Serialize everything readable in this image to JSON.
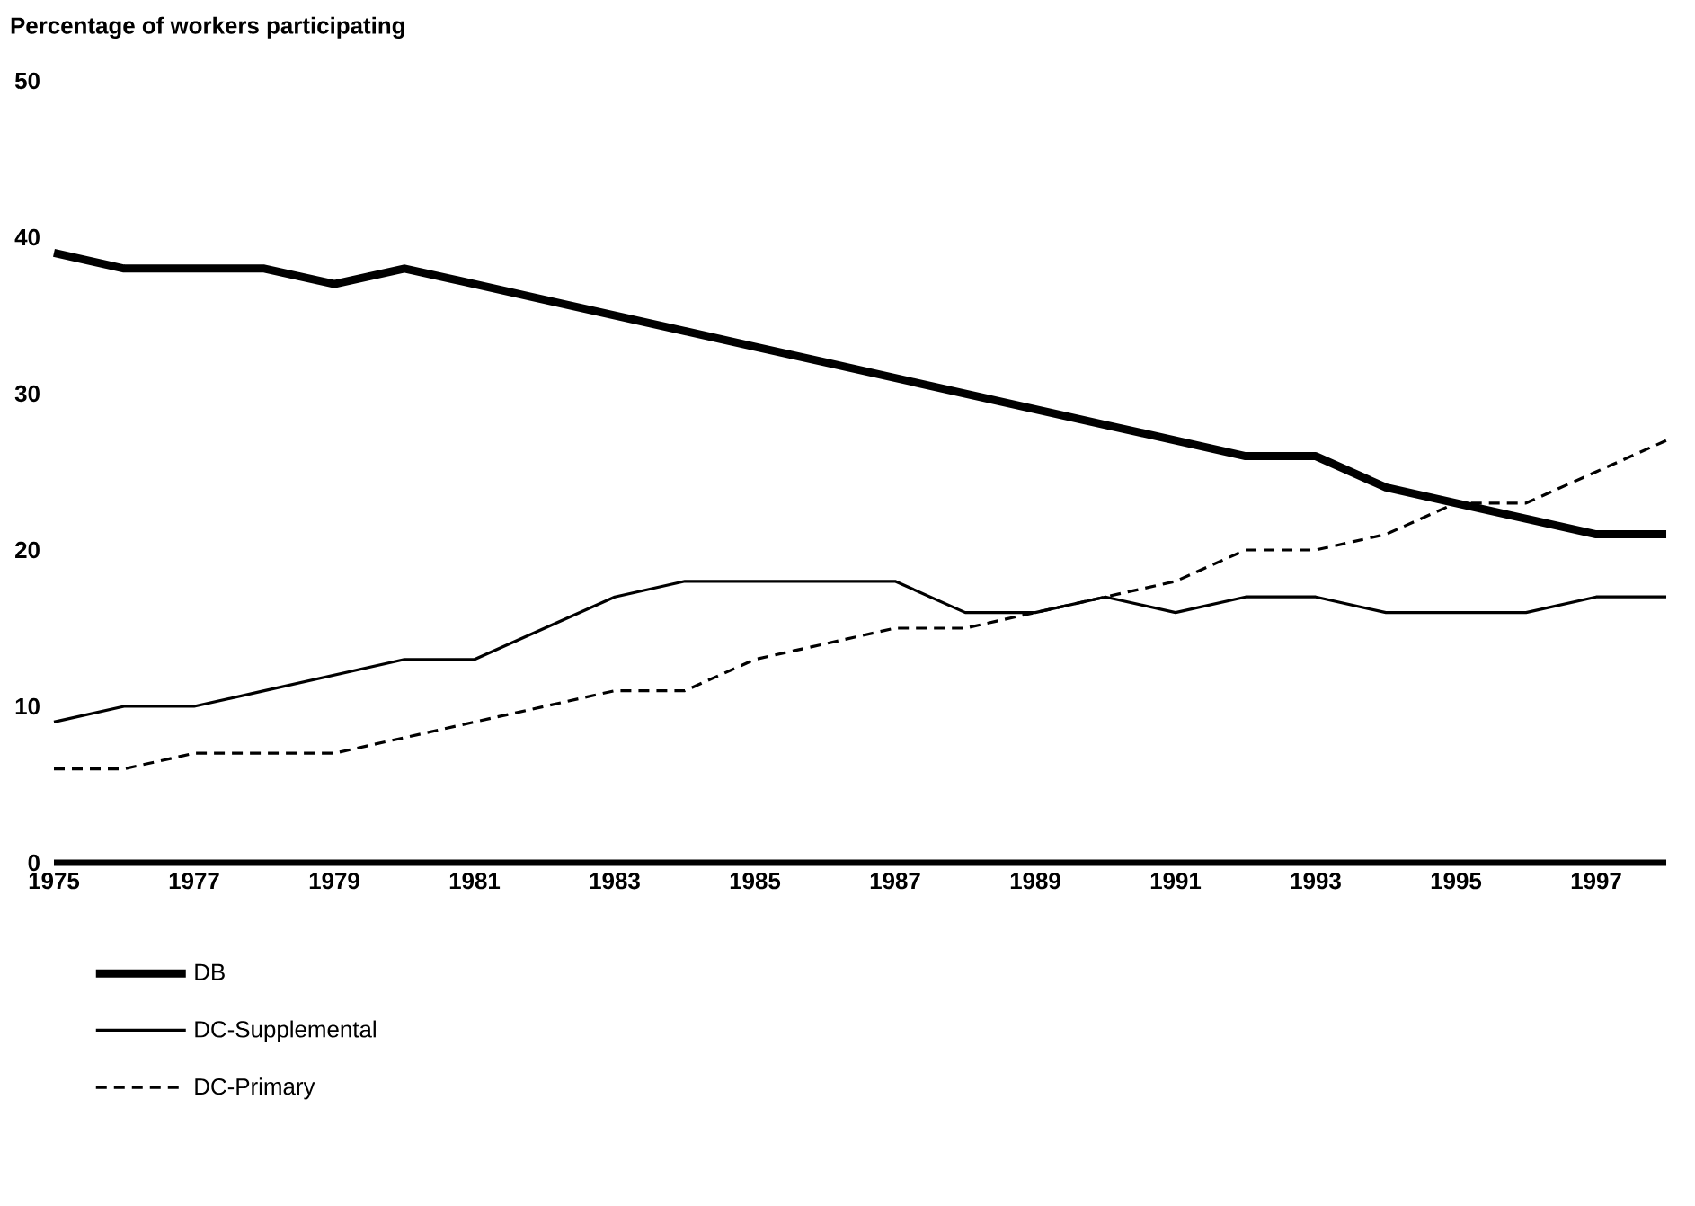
{
  "chart_data": {
    "type": "line",
    "ylabel": "Percentage of workers participating",
    "x": [
      1975,
      1976,
      1977,
      1978,
      1979,
      1980,
      1981,
      1982,
      1983,
      1984,
      1985,
      1986,
      1987,
      1988,
      1989,
      1990,
      1991,
      1992,
      1993,
      1994,
      1995,
      1996,
      1997,
      1998
    ],
    "series": [
      {
        "name": "DB",
        "color": "#000000",
        "line_style": "solid",
        "values": [
          39,
          38,
          38,
          38,
          37,
          38,
          37,
          36,
          35,
          34,
          33,
          32,
          31,
          30,
          29,
          28,
          27,
          26,
          26,
          24,
          23,
          22,
          21,
          21
        ]
      },
      {
        "name": "DC-Supplemental",
        "color": "#000000",
        "line_style": "solid",
        "values": [
          9,
          10,
          10,
          11,
          12,
          13,
          13,
          15,
          17,
          18,
          18,
          18,
          18,
          16,
          16,
          17,
          16,
          17,
          17,
          16,
          16,
          16,
          17,
          17
        ]
      },
      {
        "name": "DC-Primary",
        "color": "#000000",
        "line_style": "dashed",
        "values": [
          6,
          6,
          7,
          7,
          7,
          8,
          9,
          10,
          11,
          11,
          13,
          14,
          15,
          15,
          16,
          17,
          18,
          20,
          20,
          21,
          23,
          23,
          25,
          27
        ]
      }
    ],
    "xlim": [
      1975,
      1998
    ],
    "ylim": [
      0,
      50
    ],
    "xticks": [
      1975,
      1977,
      1979,
      1981,
      1983,
      1985,
      1987,
      1989,
      1991,
      1993,
      1995,
      1997
    ],
    "yticks": [
      0,
      10,
      20,
      30,
      40,
      50
    ],
    "legend": "bottom"
  }
}
